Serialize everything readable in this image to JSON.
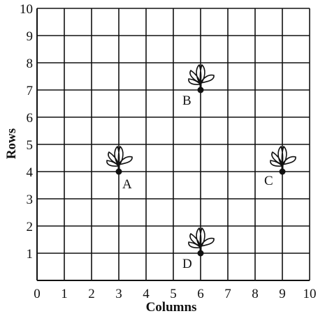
{
  "chart_data": {
    "type": "scatter",
    "xlabel": "Columns",
    "ylabel": "Rows",
    "xlim": [
      0,
      10
    ],
    "ylim": [
      0,
      10
    ],
    "grid": true,
    "x_ticks": [
      "0",
      "1",
      "2",
      "3",
      "4",
      "5",
      "6",
      "7",
      "8",
      "9",
      "10"
    ],
    "y_ticks": [
      "1",
      "2",
      "3",
      "4",
      "5",
      "6",
      "7",
      "8",
      "9",
      "10"
    ],
    "points": [
      {
        "label": "A",
        "x": 3,
        "y": 4,
        "icon": "plant-icon"
      },
      {
        "label": "B",
        "x": 6,
        "y": 7,
        "icon": "plant-icon"
      },
      {
        "label": "C",
        "x": 9,
        "y": 4,
        "icon": "plant-icon"
      },
      {
        "label": "D",
        "x": 6,
        "y": 1,
        "icon": "plant-icon"
      }
    ]
  }
}
